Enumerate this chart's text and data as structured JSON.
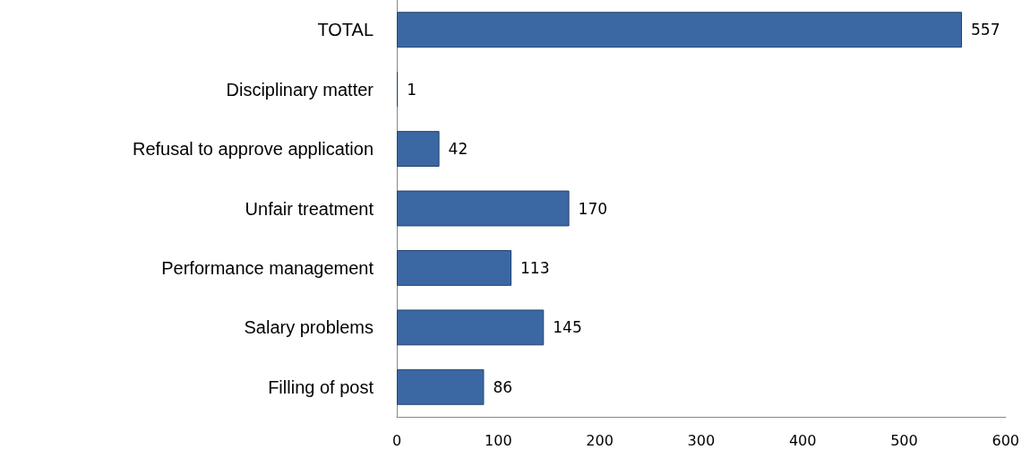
{
  "chart_data": {
    "type": "bar",
    "orientation": "horizontal",
    "categories": [
      "TOTAL",
      "Disciplinary matter",
      "Refusal to approve application",
      "Unfair treatment",
      "Performance management",
      "Salary problems",
      "Filling of post"
    ],
    "values": [
      557,
      1,
      42,
      170,
      113,
      145,
      86
    ],
    "color": "#3b67a3",
    "xlim": [
      0,
      600
    ],
    "xticks": [
      0,
      100,
      200,
      300,
      400,
      500,
      600
    ],
    "grid": false,
    "data_labels": true
  }
}
